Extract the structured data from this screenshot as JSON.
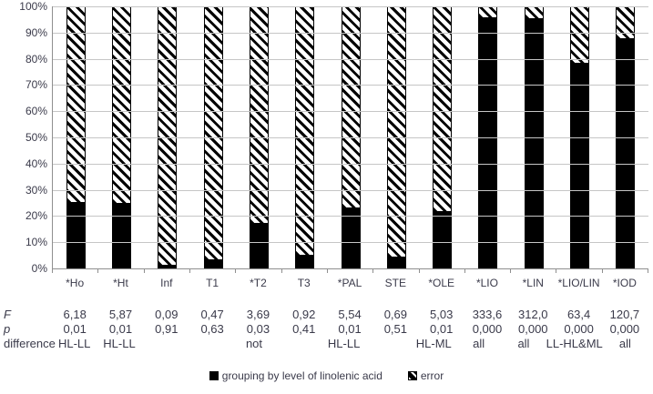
{
  "figure": {
    "background": "#ffffff",
    "text_color": "#3a3a4a",
    "gridline_color": "#c6c6c6",
    "axis_color": "#8f8f8f",
    "bar_fill": "#000000",
    "hatch_style": "black diagonal stripes (\\) on white"
  },
  "chart_data": {
    "type": "bar",
    "stacked_percent": true,
    "title": "",
    "xlabel": "",
    "ylabel": "",
    "categories": [
      "*Ho",
      "*Ht",
      "Inf",
      "T1",
      "*T2",
      "T3",
      "*PAL",
      "STE",
      "*OLE",
      "*LIO",
      "*LIN",
      "*LIO/LIN",
      "*IOD"
    ],
    "series": [
      {
        "name": "grouping by level of linolenic acid",
        "pattern": "solid-black",
        "values": [
          25,
          24.5,
          1,
          3,
          17,
          5,
          23,
          4,
          21.5,
          95.5,
          95,
          78,
          87.5
        ]
      },
      {
        "name": "error",
        "pattern": "diagonal-hatch",
        "values": [
          75,
          75.5,
          99,
          97,
          83,
          95,
          77,
          96,
          78.5,
          4.5,
          5,
          22,
          12.5
        ]
      }
    ],
    "ylim": [
      0,
      100
    ],
    "yticks": [
      "100%",
      "90%",
      "80%",
      "70%",
      "60%",
      "50%",
      "40%",
      "30%",
      "20%",
      "10%",
      "0%"
    ],
    "grid": true,
    "legend_position": "bottom"
  },
  "stats_table": {
    "rows": [
      {
        "label": "F",
        "italic": true,
        "values": [
          "6,18",
          "5,87",
          "0,09",
          "0,47",
          "3,69",
          "0,92",
          "5,54",
          "0,69",
          "5,03",
          "333,6",
          "312,0",
          "63,4",
          "120,7"
        ]
      },
      {
        "label": "p",
        "italic": true,
        "values": [
          "0,01",
          "0,01",
          "0,91",
          "0,63",
          "0,03",
          "0,41",
          "0,01",
          "0,51",
          "0,01",
          "0,000",
          "0,000",
          "0,000",
          "0,000"
        ]
      },
      {
        "label": "difference",
        "italic": false,
        "values": [
          "HL-LL",
          "HL-LL",
          "",
          "",
          "not",
          "",
          "HL-LL",
          "",
          "HL-ML",
          "all",
          "all",
          "LL-HL&ML",
          "all"
        ]
      }
    ]
  },
  "legend": {
    "items": [
      {
        "label": "grouping by level of linolenic acid",
        "swatch": "solid-black"
      },
      {
        "label": "error",
        "swatch": "diagonal-hatch"
      }
    ]
  }
}
